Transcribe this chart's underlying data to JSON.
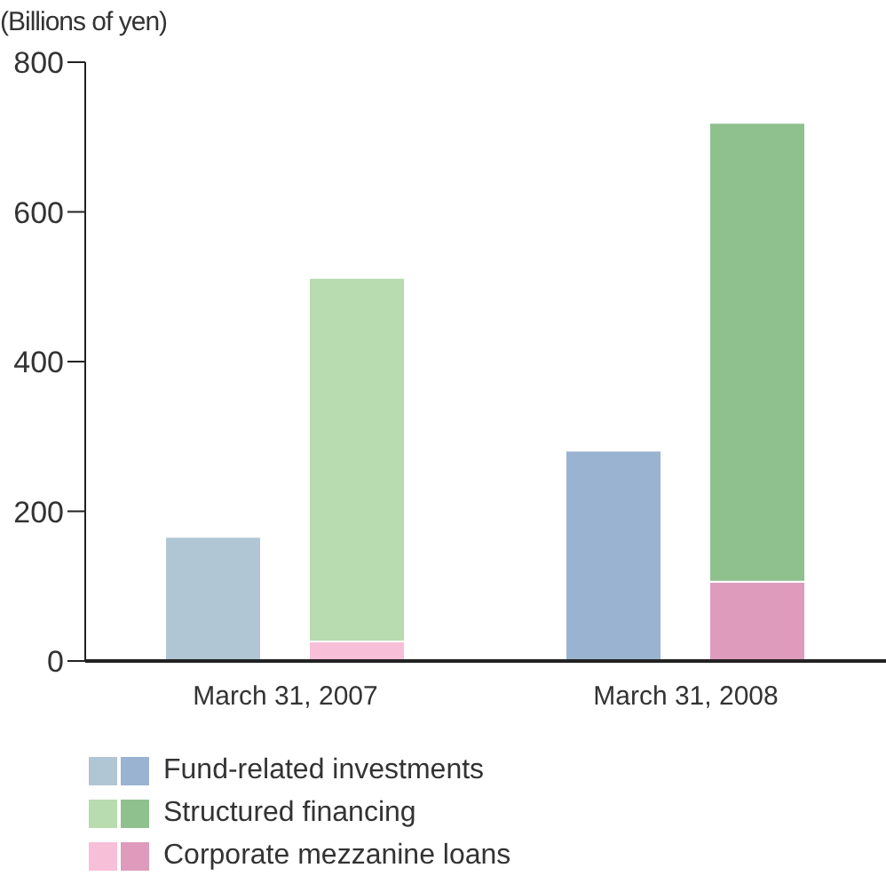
{
  "chart_data": {
    "type": "bar",
    "ylabel": "(Billions of yen)",
    "categories": [
      "March 31, 2007",
      "March 31, 2008"
    ],
    "ylim": [
      0,
      800
    ],
    "yticks": [
      0,
      200,
      400,
      600,
      800
    ],
    "legend": "bottom left",
    "series": [
      {
        "name": "Fund-related investments",
        "colors": [
          "#b0c6d4",
          "#9ab3d0"
        ],
        "values": [
          166,
          281
        ]
      },
      {
        "name": "Structured financing",
        "colors": [
          "#b8dbb0",
          "#8fc18e"
        ],
        "values": [
          486,
          613
        ],
        "base": [
          26,
          106
        ]
      },
      {
        "name": "Corporate mezzanine loans",
        "colors": [
          "#f7bfd8",
          "#de9bbb"
        ],
        "values": [
          26,
          106
        ]
      }
    ]
  }
}
